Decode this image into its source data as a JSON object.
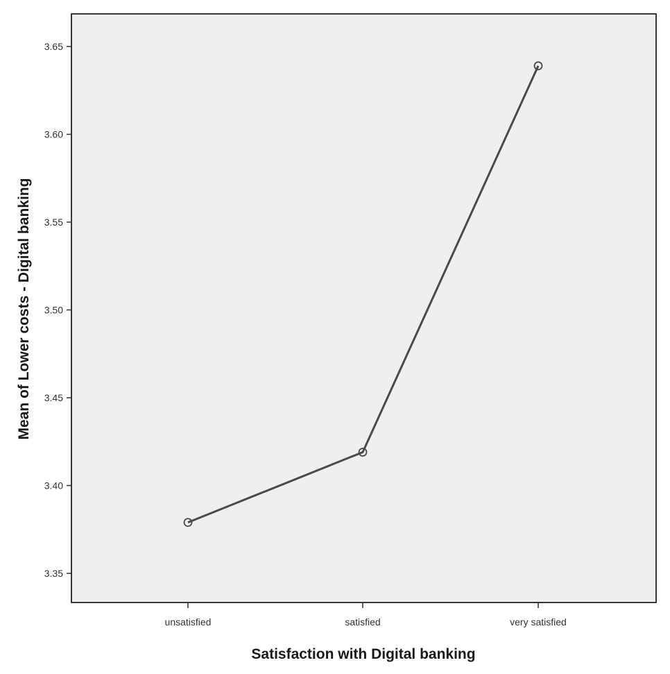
{
  "chart_data": {
    "type": "line",
    "title": "",
    "xlabel": "Satisfaction with Digital banking",
    "ylabel": "Mean of Lower costs - Digital banking",
    "categories": [
      "unsatisfied",
      "satisfied",
      "very satisfied"
    ],
    "series": [
      {
        "values": [
          3.379,
          3.419,
          3.639
        ]
      }
    ],
    "ylim": [
      3.33,
      3.66
    ],
    "yticks": [
      3.35,
      3.4,
      3.45,
      3.5,
      3.55,
      3.6,
      3.65
    ],
    "ytick_labels": [
      "3.35",
      "3.40",
      "3.45",
      "3.50",
      "3.55",
      "3.60",
      "3.65"
    ],
    "grid": false,
    "legend": "none",
    "marker": "open-circle",
    "colors": {
      "line": "#4a4a4a",
      "plot_background": "#efefef",
      "frame": "#222222"
    }
  }
}
